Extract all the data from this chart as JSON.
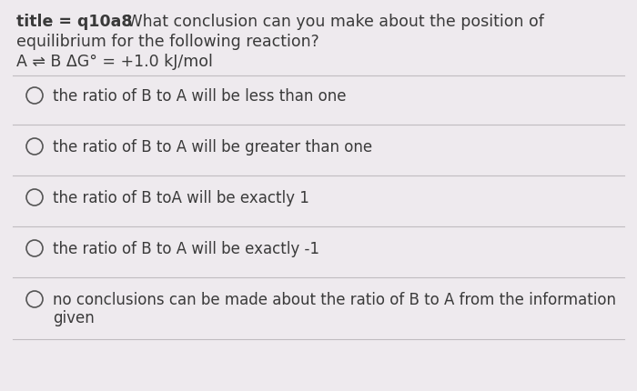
{
  "background_color": "#eeeaee",
  "title_bold": "title = q10a8",
  "title_normal": " What conclusion can you make about the position of",
  "title_line2": "equilibrium for the following reaction?",
  "title_line3": "A ⇌ B ΔG° = +1.0 kJ/mol",
  "options": [
    "the ratio of B to A will be less than one",
    "the ratio of B to A will be greater than one",
    "the ratio of B toA will be exactly 1",
    "the ratio of B to A will be exactly -1",
    "no conclusions can be made about the ratio of B to A from the information\ngiven"
  ],
  "text_color": "#3a3a3a",
  "line_color": "#c0bcc0",
  "font_size_title": 12.5,
  "font_size_options": 12.0,
  "circle_color": "#555555"
}
